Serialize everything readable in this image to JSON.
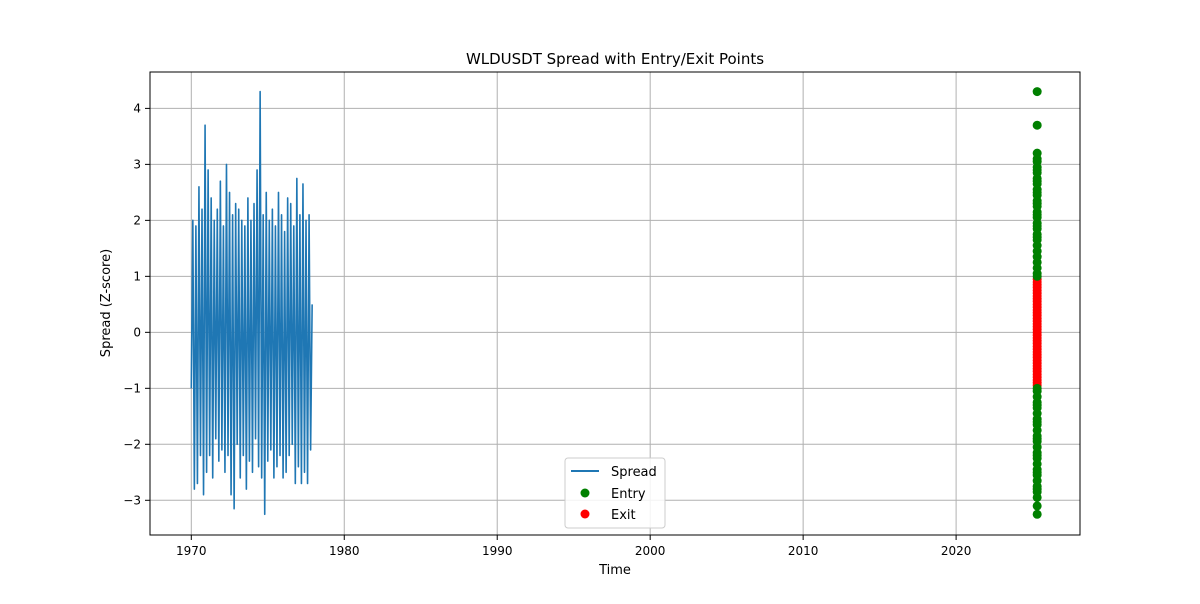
{
  "chart_data": {
    "type": "line",
    "title": "WLDUSDT Spread with Entry/Exit Points",
    "xlabel": "Time",
    "ylabel": "Spread (Z-score)",
    "xlim": [
      1967.3,
      2028.1
    ],
    "ylim": [
      -3.62,
      4.65
    ],
    "x_ticks": [
      1970,
      1980,
      1990,
      2000,
      2010,
      2020
    ],
    "x_tick_labels": [
      "1970",
      "1980",
      "1990",
      "2000",
      "2010",
      "2020"
    ],
    "y_ticks": [
      -3,
      -2,
      -1,
      0,
      1,
      2,
      3,
      4
    ],
    "y_tick_labels": [
      "−3",
      "−2",
      "−1",
      "0",
      "1",
      "2",
      "3",
      "4"
    ],
    "grid": true,
    "legend": {
      "position": "lower-center",
      "entries": [
        "Spread",
        "Exit",
        "Entry"
      ]
    },
    "series": [
      {
        "name": "Spread",
        "kind": "line",
        "color": "#1f77b4",
        "x": [
          1970.0,
          1970.1,
          1970.2,
          1970.3,
          1970.4,
          1970.5,
          1970.6,
          1970.7,
          1970.8,
          1970.9,
          1971.0,
          1971.1,
          1971.2,
          1971.3,
          1971.4,
          1971.5,
          1971.6,
          1971.7,
          1971.8,
          1971.9,
          1972.0,
          1972.1,
          1972.2,
          1972.3,
          1972.4,
          1972.5,
          1972.6,
          1972.7,
          1972.8,
          1972.9,
          1973.0,
          1973.1,
          1973.2,
          1973.3,
          1973.4,
          1973.5,
          1973.6,
          1973.7,
          1973.8,
          1973.9,
          1974.0,
          1974.1,
          1974.2,
          1974.3,
          1974.4,
          1974.5,
          1974.6,
          1974.7,
          1974.8,
          1974.9,
          1975.0,
          1975.1,
          1975.2,
          1975.3,
          1975.4,
          1975.5,
          1975.6,
          1975.7,
          1975.8,
          1975.9,
          1976.0,
          1976.1,
          1976.2,
          1976.3,
          1976.4,
          1976.5,
          1976.6,
          1976.7,
          1976.8,
          1976.9,
          1977.0,
          1977.1,
          1977.2,
          1977.3,
          1977.4,
          1977.5,
          1977.6,
          1977.7,
          1977.8,
          1977.9
        ],
        "y": [
          -1.0,
          2.0,
          -2.8,
          1.9,
          -2.7,
          2.6,
          -2.2,
          2.2,
          -2.9,
          3.7,
          -2.5,
          2.9,
          -2.2,
          2.4,
          -2.6,
          2.0,
          -1.9,
          2.2,
          -2.3,
          2.7,
          -2.1,
          1.9,
          -2.5,
          3.0,
          -2.2,
          2.5,
          -2.9,
          2.1,
          -3.15,
          2.3,
          -2.0,
          2.2,
          -2.6,
          2.0,
          -2.2,
          1.9,
          -2.8,
          2.4,
          -2.3,
          2.0,
          -2.5,
          2.3,
          -1.9,
          2.9,
          -2.4,
          4.3,
          -2.6,
          2.1,
          -3.25,
          2.5,
          -2.3,
          2.0,
          -2.1,
          2.2,
          -2.6,
          1.9,
          -2.4,
          2.5,
          -2.2,
          2.1,
          -2.6,
          1.8,
          -2.5,
          2.4,
          -2.2,
          2.3,
          -2.0,
          1.9,
          -2.7,
          2.75,
          -2.4,
          2.1,
          -2.7,
          2.65,
          -2.5,
          2.0,
          -2.7,
          2.1,
          -2.1,
          0.5
        ]
      },
      {
        "name": "Exit",
        "kind": "scatter",
        "color": "#ff0000",
        "x": [
          2025.3,
          2025.3,
          2025.3,
          2025.3,
          2025.3,
          2025.3,
          2025.3,
          2025.3,
          2025.3,
          2025.3,
          2025.3,
          2025.3,
          2025.3,
          2025.3,
          2025.3,
          2025.3,
          2025.3,
          2025.3,
          2025.3,
          2025.3,
          2025.3,
          2025.3,
          2025.3,
          2025.3,
          2025.3,
          2025.3,
          2025.3,
          2025.3,
          2025.3,
          2025.3,
          2025.3,
          2025.3,
          2025.3,
          2025.3,
          2025.3,
          2025.3,
          2025.3,
          2025.3,
          2025.3
        ],
        "y": [
          0.95,
          0.9,
          0.85,
          0.8,
          0.75,
          0.7,
          0.65,
          0.6,
          0.55,
          0.5,
          0.45,
          0.4,
          0.35,
          0.3,
          0.25,
          0.2,
          0.15,
          0.1,
          0.05,
          0.0,
          -0.05,
          -0.1,
          -0.15,
          -0.2,
          -0.25,
          -0.3,
          -0.35,
          -0.4,
          -0.45,
          -0.5,
          -0.55,
          -0.6,
          -0.65,
          -0.7,
          -0.75,
          -0.8,
          -0.85,
          -0.9,
          -0.95
        ]
      },
      {
        "name": "Entry",
        "kind": "scatter",
        "color": "#008000",
        "x": [
          2025.3,
          2025.3,
          2025.3,
          2025.3,
          2025.3,
          2025.3,
          2025.3,
          2025.3,
          2025.3,
          2025.3,
          2025.3,
          2025.3,
          2025.3,
          2025.3,
          2025.3,
          2025.3,
          2025.3,
          2025.3,
          2025.3,
          2025.3,
          2025.3,
          2025.3,
          2025.3,
          2025.3,
          2025.3,
          2025.3,
          2025.3,
          2025.3,
          2025.3,
          2025.3,
          2025.3,
          2025.3,
          2025.3,
          2025.3,
          2025.3,
          2025.3,
          2025.3,
          2025.3,
          2025.3,
          2025.3,
          2025.3,
          2025.3,
          2025.3,
          2025.3,
          2025.3,
          2025.3,
          2025.3,
          2025.3,
          2025.3,
          2025.3,
          2025.3,
          2025.3,
          2025.3,
          2025.3,
          2025.3,
          2025.3,
          2025.3,
          2025.3,
          2025.3,
          2025.3,
          2025.3,
          2025.3
        ],
        "y": [
          4.3,
          3.7,
          3.2,
          3.05,
          2.95,
          2.85,
          2.75,
          2.65,
          2.55,
          2.45,
          2.35,
          2.25,
          2.15,
          2.05,
          1.95,
          1.85,
          1.75,
          1.65,
          1.55,
          1.45,
          1.35,
          1.25,
          1.15,
          1.05,
          1.0,
          -1.0,
          -1.05,
          -1.15,
          -1.25,
          -1.35,
          -1.45,
          -1.55,
          -1.65,
          -1.75,
          -1.85,
          -1.95,
          -2.05,
          -2.15,
          -2.25,
          -2.35,
          -2.45,
          -2.55,
          -2.65,
          -2.75,
          -2.85,
          -2.95,
          -3.1,
          -3.25,
          3.1,
          2.9,
          2.7,
          2.5,
          2.3,
          2.1,
          1.9,
          1.7,
          -1.3,
          -1.6,
          -1.9,
          -2.2,
          -2.5,
          -2.8
        ]
      }
    ]
  }
}
